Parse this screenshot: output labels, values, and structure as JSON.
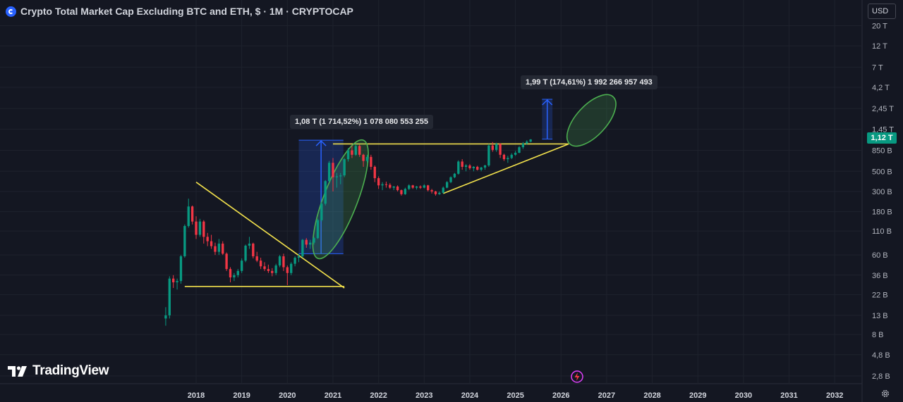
{
  "header": {
    "title": "Crypto Total Market Cap Excluding BTC and ETH, $ · 1M · CRYPTOCAP",
    "icon": "cryptocap-symbol-icon"
  },
  "currency_selector": {
    "value": "USD"
  },
  "brand": {
    "name": "TradingView",
    "icon": "tradingview-logo-icon"
  },
  "last_price": {
    "label": "1,12 T",
    "color": "#089981"
  },
  "annotations": {
    "measure1": "1,08 T (1 714,52%) 1 078 080 553 255",
    "measure2": "1,99 T (174,61%) 1 992 266 957 493"
  },
  "colors": {
    "up": "#089981",
    "down": "#f23645",
    "trendline": "#f2e14c",
    "ellipse": "#4caf50",
    "measure": "#2962ff",
    "background": "#141722"
  },
  "icons": [
    "gear-icon",
    "lightning-icon"
  ],
  "chart_data": {
    "type": "candlestick",
    "title": "Crypto Total Market Cap Excluding BTC and ETH, $ · 1M · CRYPTOCAP",
    "interval": "1M",
    "y_scale": "log",
    "y_ticks": [
      {
        "label": "20 T",
        "value": 20000
      },
      {
        "label": "12 T",
        "value": 12000
      },
      {
        "label": "7 T",
        "value": 7000
      },
      {
        "label": "4,2 T",
        "value": 4200
      },
      {
        "label": "2,45 T",
        "value": 2450
      },
      {
        "label": "1,45 T",
        "value": 1450
      },
      {
        "label": "850 B",
        "value": 850
      },
      {
        "label": "500 B",
        "value": 500
      },
      {
        "label": "300 B",
        "value": 300
      },
      {
        "label": "180 B",
        "value": 180
      },
      {
        "label": "110 B",
        "value": 110
      },
      {
        "label": "60 B",
        "value": 60
      },
      {
        "label": "36 B",
        "value": 36
      },
      {
        "label": "22 B",
        "value": 22
      },
      {
        "label": "13 B",
        "value": 13
      },
      {
        "label": "8 B",
        "value": 8
      },
      {
        "label": "4,8 B",
        "value": 4.8
      },
      {
        "label": "2,8 B",
        "value": 2.8
      }
    ],
    "x_ticks": [
      {
        "label": "2018",
        "value": 2018
      },
      {
        "label": "2019",
        "value": 2019
      },
      {
        "label": "2020",
        "value": 2020
      },
      {
        "label": "2021",
        "value": 2021
      },
      {
        "label": "2022",
        "value": 2022
      },
      {
        "label": "2023",
        "value": 2023
      },
      {
        "label": "2024",
        "value": 2024
      },
      {
        "label": "2025",
        "value": 2025
      },
      {
        "label": "2026",
        "value": 2026
      },
      {
        "label": "2027",
        "value": 2027
      },
      {
        "label": "2028",
        "value": 2028
      },
      {
        "label": "2029",
        "value": 2029
      },
      {
        "label": "2030",
        "value": 2030
      },
      {
        "label": "2031",
        "value": 2031
      },
      {
        "label": "2032",
        "value": 2032
      }
    ],
    "xlim": [
      2013.7,
      2032.6
    ],
    "ylim": [
      2.3,
      25000
    ],
    "candles_start": "2017-05",
    "candles_ohlc_billions": [
      [
        12.0,
        16.0,
        10.0,
        13.0
      ],
      [
        13.0,
        35.0,
        12.0,
        33.0
      ],
      [
        33.0,
        36.0,
        26.0,
        30.0
      ],
      [
        30.0,
        33.0,
        25.0,
        31.0
      ],
      [
        31.0,
        60.0,
        29.0,
        58.0
      ],
      [
        58.0,
        130.0,
        56.0,
        125.0
      ],
      [
        125.0,
        250.0,
        120.0,
        205.0
      ],
      [
        205.0,
        210.0,
        130.0,
        140.0
      ],
      [
        140.0,
        160.0,
        90.0,
        100.0
      ],
      [
        100.0,
        150.0,
        95.0,
        140.0
      ],
      [
        140.0,
        145.0,
        80.0,
        95.0
      ],
      [
        95.0,
        105.0,
        75.0,
        85.0
      ],
      [
        85.0,
        100.0,
        70.0,
        75.0
      ],
      [
        75.0,
        82.0,
        60.0,
        65.0
      ],
      [
        65.0,
        90.0,
        60.0,
        80.0
      ],
      [
        80.0,
        85.0,
        60.0,
        62.0
      ],
      [
        62.0,
        64.0,
        40.0,
        42.0
      ],
      [
        42.0,
        44.0,
        30.0,
        34.0
      ],
      [
        34.0,
        38.0,
        31.0,
        36.0
      ],
      [
        36.0,
        42.0,
        34.0,
        40.0
      ],
      [
        40.0,
        55.0,
        38.0,
        52.0
      ],
      [
        52.0,
        78.0,
        50.0,
        76.0
      ],
      [
        76.0,
        95.0,
        70.0,
        80.0
      ],
      [
        80.0,
        82.0,
        55.0,
        58.0
      ],
      [
        58.0,
        65.0,
        50.0,
        52.0
      ],
      [
        52.0,
        56.0,
        42.0,
        45.0
      ],
      [
        45.0,
        50.0,
        40.0,
        42.0
      ],
      [
        42.0,
        47.0,
        38.0,
        40.0
      ],
      [
        40.0,
        43.0,
        35.0,
        38.0
      ],
      [
        38.0,
        48.0,
        36.0,
        46.0
      ],
      [
        46.0,
        60.0,
        44.0,
        58.0
      ],
      [
        58.0,
        62.0,
        40.0,
        44.0
      ],
      [
        44.0,
        46.0,
        28.0,
        38.0
      ],
      [
        38.0,
        50.0,
        36.0,
        48.0
      ],
      [
        48.0,
        58.0,
        45.0,
        56.0
      ],
      [
        56.0,
        62.0,
        50.0,
        58.0
      ],
      [
        58.0,
        90.0,
        56.0,
        88.0
      ],
      [
        88.0,
        92.0,
        72.0,
        78.0
      ],
      [
        78.0,
        88.0,
        70.0,
        82.0
      ],
      [
        82.0,
        95.0,
        78.0,
        92.0
      ],
      [
        92.0,
        150.0,
        90.0,
        145.0
      ],
      [
        145.0,
        230.0,
        140.0,
        220.0
      ],
      [
        220.0,
        400.0,
        210.0,
        390.0
      ],
      [
        390.0,
        650.0,
        380.0,
        620.0
      ],
      [
        620.0,
        700.0,
        300.0,
        430.0
      ],
      [
        430.0,
        480.0,
        330.0,
        440.0
      ],
      [
        440.0,
        480.0,
        360.0,
        450.0
      ],
      [
        450.0,
        700.0,
        430.0,
        680.0
      ],
      [
        680.0,
        900.0,
        640.0,
        850.0
      ],
      [
        850.0,
        950.0,
        700.0,
        760.0
      ],
      [
        760.0,
        1000.0,
        740.0,
        950.0
      ],
      [
        950.0,
        980.0,
        720.0,
        760.0
      ],
      [
        760.0,
        780.0,
        560.0,
        650.0
      ],
      [
        650.0,
        760.0,
        620.0,
        720.0
      ],
      [
        720.0,
        760.0,
        520.0,
        560.0
      ],
      [
        560.0,
        580.0,
        380.0,
        420.0
      ],
      [
        420.0,
        440.0,
        320.0,
        350.0
      ],
      [
        350.0,
        380.0,
        310.0,
        360.0
      ],
      [
        360.0,
        385.0,
        330.0,
        355.0
      ],
      [
        355.0,
        370.0,
        320.0,
        330.0
      ],
      [
        330.0,
        345.0,
        310.0,
        340.0
      ],
      [
        340.0,
        350.0,
        300.0,
        310.0
      ],
      [
        310.0,
        315.0,
        270.0,
        280.0
      ],
      [
        280.0,
        330.0,
        275.0,
        320.0
      ],
      [
        320.0,
        360.0,
        310.0,
        350.0
      ],
      [
        350.0,
        355.0,
        320.0,
        330.0
      ],
      [
        330.0,
        345.0,
        315.0,
        340.0
      ],
      [
        340.0,
        350.0,
        320.0,
        330.0
      ],
      [
        330.0,
        360.0,
        325.0,
        350.0
      ],
      [
        350.0,
        355.0,
        300.0,
        310.0
      ],
      [
        310.0,
        320.0,
        285.0,
        300.0
      ],
      [
        300.0,
        305.0,
        270.0,
        280.0
      ],
      [
        280.0,
        300.0,
        275.0,
        290.0
      ],
      [
        290.0,
        340.0,
        285.0,
        330.0
      ],
      [
        330.0,
        390.0,
        325.0,
        380.0
      ],
      [
        380.0,
        440.0,
        370.0,
        430.0
      ],
      [
        430.0,
        480.0,
        420.0,
        470.0
      ],
      [
        470.0,
        660.0,
        460.0,
        640.0
      ],
      [
        640.0,
        680.0,
        520.0,
        560.0
      ],
      [
        560.0,
        600.0,
        500.0,
        580.0
      ],
      [
        580.0,
        600.0,
        520.0,
        540.0
      ],
      [
        540.0,
        570.0,
        500.0,
        560.0
      ],
      [
        560.0,
        575.0,
        510.0,
        520.0
      ],
      [
        520.0,
        560.0,
        500.0,
        550.0
      ],
      [
        550.0,
        590.0,
        520.0,
        580.0
      ],
      [
        580.0,
        1000.0,
        560.0,
        960.0
      ],
      [
        960.0,
        1050.0,
        820.0,
        860.0
      ],
      [
        860.0,
        1030.0,
        820.0,
        1000.0
      ],
      [
        1000.0,
        1020.0,
        700.0,
        760.0
      ],
      [
        760.0,
        780.0,
        650.0,
        680.0
      ],
      [
        680.0,
        740.0,
        620.0,
        700.0
      ],
      [
        700.0,
        790.0,
        680.0,
        760.0
      ],
      [
        760.0,
        840.0,
        740.0,
        800.0
      ],
      [
        800.0,
        950.0,
        790.0,
        920.0
      ],
      [
        920.0,
        1050.0,
        880.0,
        1010.0
      ],
      [
        1010.0,
        1100.0,
        980.0,
        1060.0
      ],
      [
        1060.0,
        1130.0,
        1040.0,
        1120.0
      ]
    ],
    "trendlines": [
      {
        "name": "triangle-upper",
        "p1": [
          "2018-01",
          380
        ],
        "p2": [
          "2021-04",
          26
        ]
      },
      {
        "name": "triangle-base",
        "p1": [
          "2017-10",
          27
        ],
        "p2": [
          "2021-04",
          27
        ]
      },
      {
        "name": "resistance",
        "p1": [
          "2021-01",
          1000
        ],
        "p2": [
          "2026-03",
          1000
        ]
      },
      {
        "name": "ascending-support",
        "p1": [
          "2023-06",
          285
        ],
        "p2": [
          "2026-03",
          1000
        ]
      }
    ],
    "measures": [
      {
        "from": [
          "2020-10",
          62
        ],
        "to": [
          "2020-10",
          1100
        ],
        "x_span": [
          "2020-04",
          "2021-03"
        ],
        "label": "1,08 T (1 714,52%) 1 078 080 553 255"
      },
      {
        "from": [
          "2025-10",
          1130
        ],
        "to": [
          "2025-10",
          3100
        ],
        "x_span": [
          "2025-08",
          "2025-10"
        ],
        "label": "1,99 T (174,61%) 1 992 266 957 493"
      }
    ],
    "ellipses": [
      {
        "center": [
          "2021-03",
          330
        ],
        "x_span_years": 1.0,
        "low": 55,
        "high": 1100
      },
      {
        "center": [
          "2026-09",
          1900
        ],
        "x_span_years": 0.95,
        "low": 1000,
        "high": 3300
      }
    ],
    "grid": true,
    "legend": "none"
  }
}
